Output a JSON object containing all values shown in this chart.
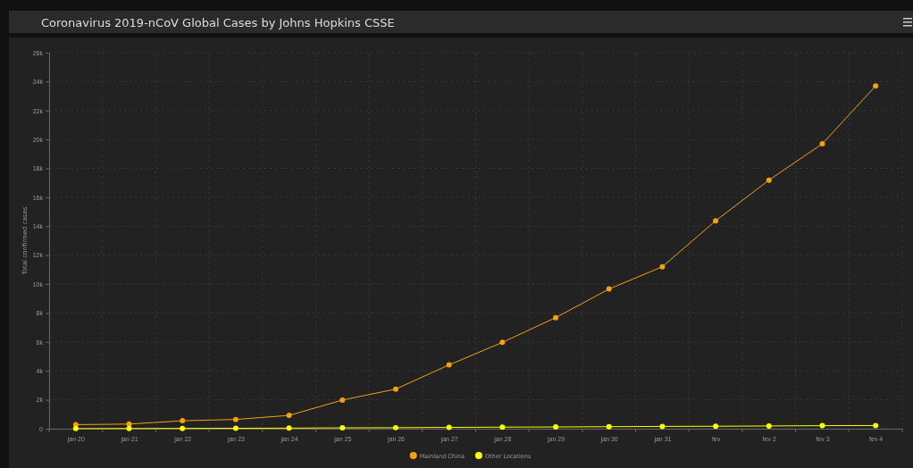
{
  "chart_data": {
    "type": "line",
    "title": "Coronavirus 2019-nCoV Global Cases by Johns Hopkins CSSE",
    "ylabel": "Total confirmed cases",
    "categories": [
      "jan 20",
      "jan 21",
      "jan 22",
      "jan 23",
      "jan 24",
      "jan 25",
      "jan 26",
      "jan 27",
      "jan 28",
      "jan 29",
      "jan 30",
      "jan 31",
      "fev",
      "fev 2",
      "fev 3",
      "fev 4"
    ],
    "series": [
      {
        "name": "Mainland China",
        "color": "#f5a00f",
        "values": [
          280,
          320,
          550,
          640,
          920,
          1980,
          2740,
          4410,
          5970,
          7680,
          9660,
          11200,
          14380,
          17190,
          19700,
          23700
        ]
      },
      {
        "name": "Other Locations",
        "color": "#ffff00",
        "values": [
          10,
          15,
          20,
          30,
          40,
          60,
          70,
          90,
          110,
          120,
          140,
          160,
          170,
          190,
          210,
          220
        ]
      }
    ],
    "ylim": [
      0,
      26000
    ],
    "yticks": [
      {
        "value": 0,
        "label": "0"
      },
      {
        "value": 2000,
        "label": "2k"
      },
      {
        "value": 4000,
        "label": "4k"
      },
      {
        "value": 6000,
        "label": "6k"
      },
      {
        "value": 8000,
        "label": "8k"
      },
      {
        "value": 10000,
        "label": "10k"
      },
      {
        "value": 12000,
        "label": "12k"
      },
      {
        "value": 14000,
        "label": "14k"
      },
      {
        "value": 16000,
        "label": "16k"
      },
      {
        "value": 18000,
        "label": "18k"
      },
      {
        "value": 20000,
        "label": "20k"
      },
      {
        "value": 22000,
        "label": "22k"
      },
      {
        "value": 24000,
        "label": "24k"
      },
      {
        "value": 26000,
        "label": "26k"
      }
    ],
    "grid": true,
    "legend": "bottom",
    "marker": "circle"
  }
}
